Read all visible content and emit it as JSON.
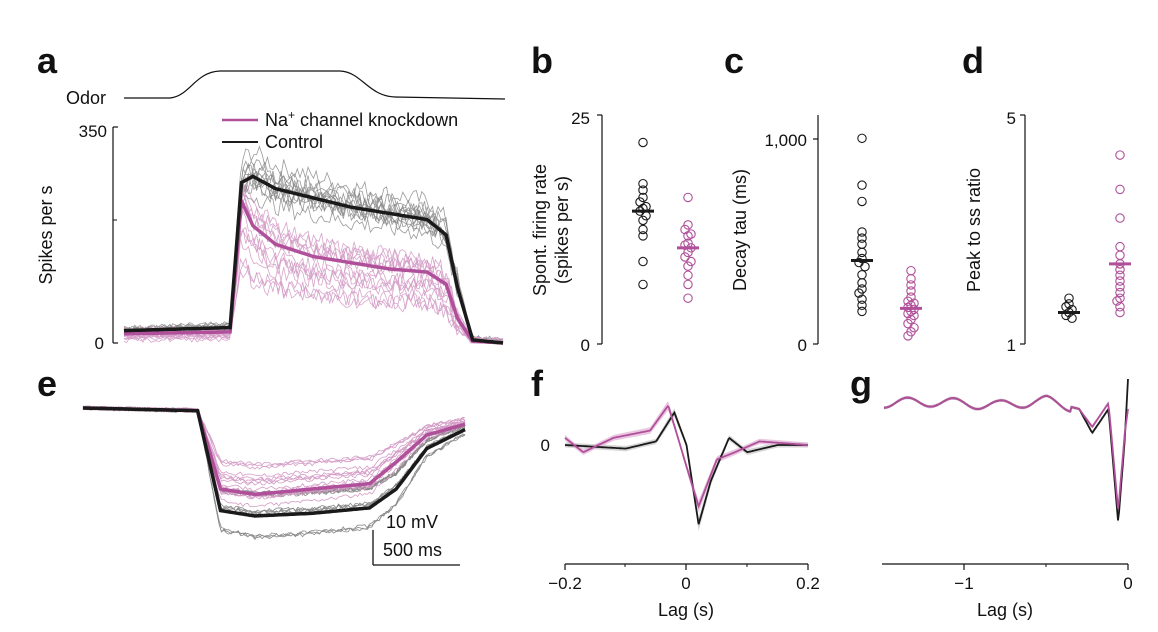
{
  "colors": {
    "control": "#1a1a1a",
    "knockdown": "#b0509a",
    "control_light": "#8a8a8a",
    "knockdown_light": "#d49cc6",
    "shade_gray": "#c8c8c8",
    "shade_pink": "#e3b4d6"
  },
  "panels": {
    "a": "a",
    "b": "b",
    "c": "c",
    "d": "d",
    "e": "e",
    "f": "f",
    "g": "g"
  },
  "chart_data": [
    {
      "panel": "a",
      "type": "line",
      "odor_label": "Odor",
      "ylabel": "Spikes per s",
      "ylim": [
        0,
        350
      ],
      "yticks": [
        "350",
        "0"
      ],
      "legend": [
        "Na+ channel knockdown",
        "Control"
      ],
      "legend_text": {
        "knockdown_main": "Na",
        "knockdown_sup": "+",
        "knockdown_rest": " channel knockdown",
        "control": "Control"
      },
      "series": [
        {
          "name": "Control",
          "x": [
            0,
            0.28,
            0.31,
            0.34,
            0.4,
            0.5,
            0.6,
            0.7,
            0.8,
            0.85,
            0.88,
            0.92,
            1.0
          ],
          "values": [
            20,
            25,
            260,
            270,
            250,
            235,
            220,
            210,
            200,
            175,
            90,
            5,
            0
          ]
        },
        {
          "name": "Na+ channel knockdown",
          "x": [
            0,
            0.28,
            0.31,
            0.34,
            0.4,
            0.5,
            0.6,
            0.7,
            0.8,
            0.85,
            0.88,
            0.92,
            1.0
          ],
          "values": [
            15,
            18,
            230,
            190,
            160,
            140,
            130,
            120,
            115,
            95,
            40,
            3,
            0
          ]
        }
      ]
    },
    {
      "panel": "b",
      "type": "scatter",
      "ylabel": "Spont. firing rate",
      "ylabel2": "(spikes per s)",
      "ylim": [
        0,
        25
      ],
      "yticks": [
        "25",
        "0"
      ],
      "series": [
        {
          "name": "Control",
          "values": [
            22,
            17.5,
            16.8,
            16,
            15.5,
            15,
            14.8,
            14.5,
            14,
            13.5,
            12.5,
            11.8,
            9,
            6.5
          ],
          "mean": 14.5
        },
        {
          "name": "Na+ channel knockdown",
          "values": [
            16,
            13,
            12.5,
            12,
            11.8,
            11,
            10.8,
            10.5,
            10,
            9.5,
            9,
            8.5,
            7.5,
            6.5,
            5
          ],
          "mean": 10.5
        }
      ]
    },
    {
      "panel": "c",
      "type": "scatter",
      "ylabel": "Decay tau (ms)",
      "ylim": [
        0,
        1100
      ],
      "yticks": [
        "1,000",
        "0"
      ],
      "series": [
        {
          "name": "Control",
          "values": [
            1010,
            780,
            700,
            550,
            520,
            490,
            450,
            420,
            400,
            380,
            340,
            300,
            270,
            250,
            220,
            190,
            160
          ],
          "mean": 410
        },
        {
          "name": "Na+ channel knockdown",
          "values": [
            360,
            320,
            290,
            260,
            230,
            210,
            200,
            190,
            180,
            170,
            160,
            150,
            140,
            120,
            100,
            80,
            60,
            40
          ],
          "mean": 175
        }
      ]
    },
    {
      "panel": "d",
      "type": "scatter",
      "ylabel": "Peak to ss ratio",
      "ylim": [
        1,
        5
      ],
      "yticks": [
        "5",
        "1"
      ],
      "series": [
        {
          "name": "Control",
          "values": [
            1.8,
            1.7,
            1.65,
            1.6,
            1.55,
            1.5,
            1.45
          ],
          "mean": 1.55
        },
        {
          "name": "Na+ channel knockdown",
          "values": [
            4.3,
            3.7,
            3.2,
            2.7,
            2.55,
            2.4,
            2.3,
            2.2,
            2.1,
            2.0,
            1.9,
            1.8,
            1.75,
            1.65,
            1.55
          ],
          "mean": 2.4
        }
      ]
    },
    {
      "panel": "e",
      "type": "line",
      "scalebar": {
        "voltage": "10 mV",
        "time": "500 ms"
      },
      "series": [
        {
          "name": "Control",
          "x": [
            0,
            0.3,
            0.36,
            0.45,
            0.6,
            0.75,
            0.82,
            0.9,
            1.0
          ],
          "values": [
            0,
            -1,
            -38,
            -40,
            -39,
            -37,
            -30,
            -15,
            -8
          ]
        },
        {
          "name": "Na+ channel knockdown",
          "x": [
            0,
            0.3,
            0.36,
            0.45,
            0.6,
            0.75,
            0.82,
            0.9,
            1.0
          ],
          "values": [
            0,
            -1,
            -30,
            -32,
            -30,
            -28,
            -20,
            -10,
            -6
          ]
        }
      ]
    },
    {
      "panel": "f",
      "type": "line",
      "xlabel": "Lag (s)",
      "xlim": [
        -0.2,
        0.2
      ],
      "xticks": [
        "−0.2",
        "0",
        "0.2"
      ],
      "ytick_label": "0",
      "series": [
        {
          "name": "Control",
          "x": [
            -0.2,
            -0.1,
            -0.05,
            -0.02,
            0,
            0.02,
            0.04,
            0.07,
            0.1,
            0.15,
            0.2
          ],
          "values": [
            0,
            -0.05,
            0.05,
            0.45,
            0.0,
            -1.1,
            -0.5,
            0.1,
            -0.1,
            0.0,
            0.0
          ]
        },
        {
          "name": "Na+ channel knockdown",
          "x": [
            -0.2,
            -0.17,
            -0.12,
            -0.06,
            -0.03,
            0,
            0.02,
            0.05,
            0.08,
            0.12,
            0.2
          ],
          "values": [
            0.1,
            -0.1,
            0.1,
            0.2,
            0.55,
            -0.3,
            -0.85,
            -0.2,
            -0.1,
            0.05,
            0.0
          ]
        }
      ]
    },
    {
      "panel": "g",
      "type": "line",
      "xlabel": "Lag (s)",
      "xlim": [
        -1.5,
        0
      ],
      "xticks": [
        "−1",
        "0"
      ],
      "series": [
        {
          "name": "Control",
          "x": [
            -1.5,
            -1.2,
            -0.8,
            -0.5,
            -0.3,
            -0.22,
            -0.12,
            -0.06,
            -0.02,
            0
          ],
          "values": [
            0,
            0.01,
            -0.02,
            0.02,
            -0.05,
            -0.25,
            -0.05,
            -1.0,
            -0.3,
            0.2
          ]
        },
        {
          "name": "Na+ channel knockdown",
          "x": [
            -1.5,
            -1.2,
            -0.8,
            -0.5,
            -0.3,
            -0.22,
            -0.12,
            -0.06,
            -0.02,
            0
          ],
          "values": [
            0,
            0.01,
            -0.02,
            0.02,
            -0.05,
            -0.2,
            0.0,
            -0.9,
            -0.25,
            -0.05
          ]
        }
      ]
    }
  ]
}
